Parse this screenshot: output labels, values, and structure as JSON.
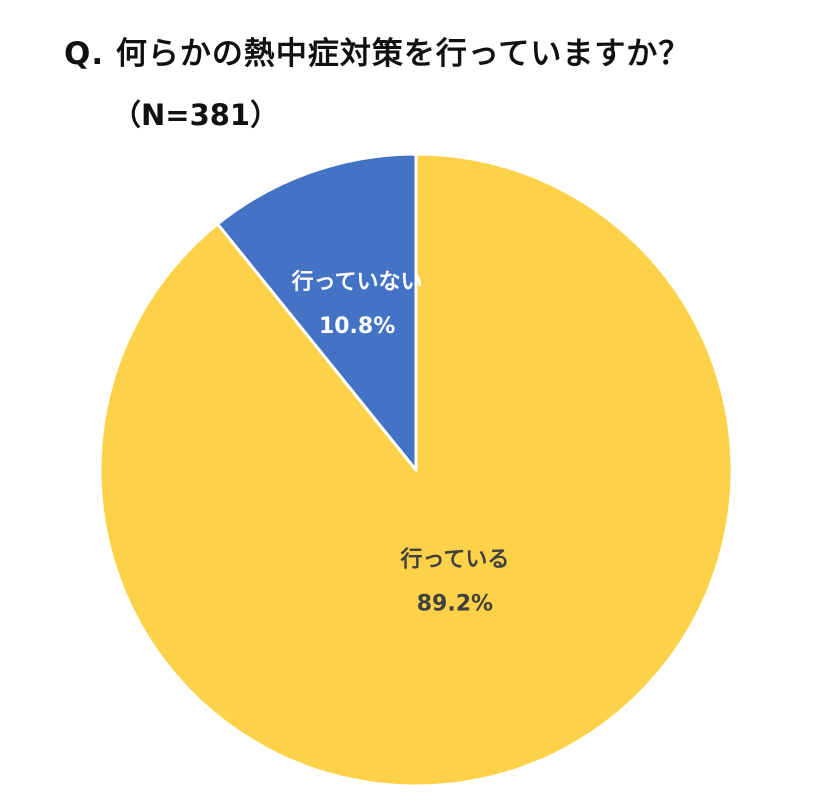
{
  "title": "Q. 何らかの熱中症対策を行っていますか？",
  "subtitle": "（N=381）",
  "colors": {
    "slice_main": "#FDD248",
    "slice_minor": "#4472C4",
    "label_dark": "#404040",
    "label_light": "#FFFFFF",
    "stroke": "#FFFFFF"
  },
  "chart_data": {
    "type": "pie",
    "title": "Q. 何らかの熱中症対策を行っていますか？",
    "subtitle": "（N=381）",
    "categories": [
      "行っている",
      "行っていない"
    ],
    "values": [
      89.2,
      10.8
    ],
    "value_labels": [
      "89.2%",
      "10.8%"
    ],
    "slice_colors": [
      "#FDD248",
      "#4472C4"
    ],
    "label_colors": [
      "#404040",
      "#FFFFFF"
    ],
    "start": "12 o'clock, clockwise",
    "legend": "none (data labels inside slices)"
  }
}
